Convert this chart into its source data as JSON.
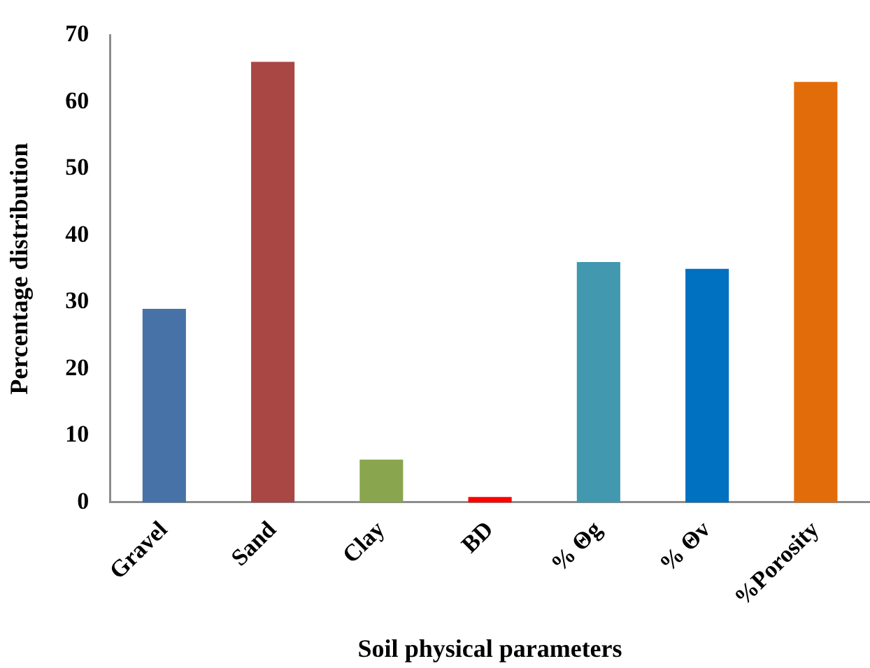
{
  "chart_data": {
    "type": "bar",
    "xlabel": "Soil physical parameters",
    "ylabel": "Percentage distribution",
    "categories": [
      "Gravel",
      "Sand",
      "Clay",
      "BD",
      "% Θg",
      "% Θv",
      "%Porosity"
    ],
    "values": [
      29,
      66,
      6.4,
      0.8,
      36,
      35,
      63
    ],
    "colors": [
      "#4672a8",
      "#a94744",
      "#89a54e",
      "#ff0000",
      "#4198af",
      "#0070c0",
      "#e36c0a"
    ],
    "ylim": [
      0,
      70
    ],
    "yticks": [
      0,
      10,
      20,
      30,
      40,
      50,
      60,
      70
    ],
    "grid": false
  }
}
